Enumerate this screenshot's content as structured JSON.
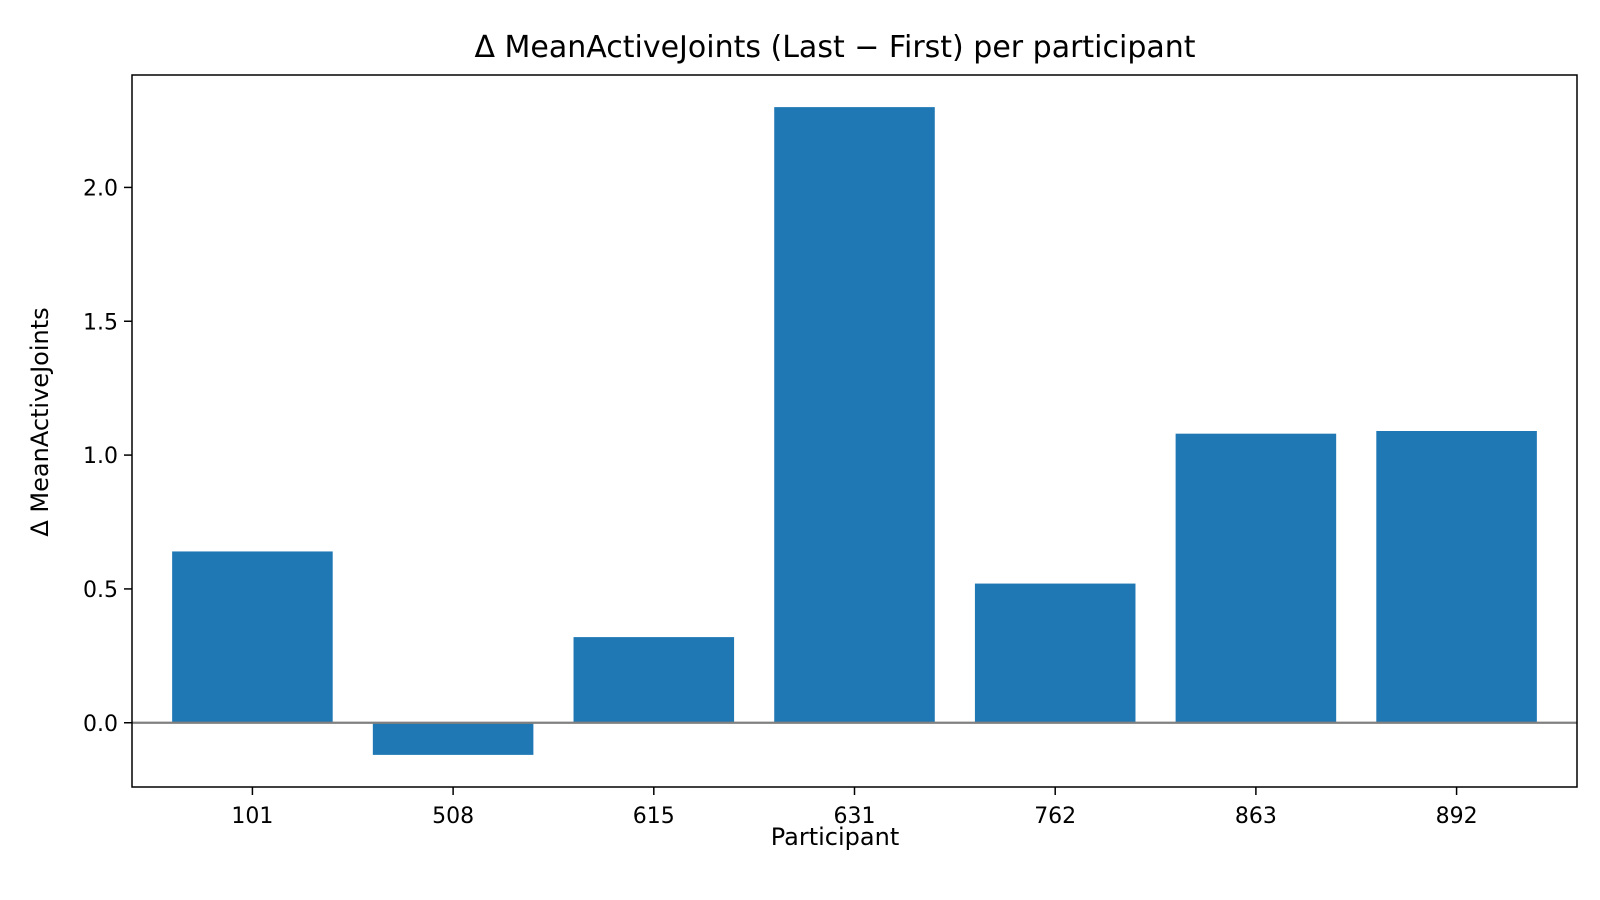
{
  "chart_data": {
    "type": "bar",
    "title": "Δ MeanActiveJoints (Last − First) per participant",
    "xlabel": "Participant",
    "ylabel": "Δ MeanActiveJoints",
    "categories": [
      "101",
      "508",
      "615",
      "631",
      "762",
      "863",
      "892"
    ],
    "values": [
      0.64,
      -0.12,
      0.32,
      2.3,
      0.52,
      1.08,
      1.09
    ],
    "ylim": [
      -0.24,
      2.42
    ],
    "yticks": [
      0.0,
      0.5,
      1.0,
      1.5,
      2.0
    ],
    "ytick_labels": [
      "0.0",
      "0.5",
      "1.0",
      "1.5",
      "2.0"
    ],
    "bar_color": "#1f77b4",
    "zero_line_color": "#808080",
    "grid": false,
    "legend": "none"
  }
}
